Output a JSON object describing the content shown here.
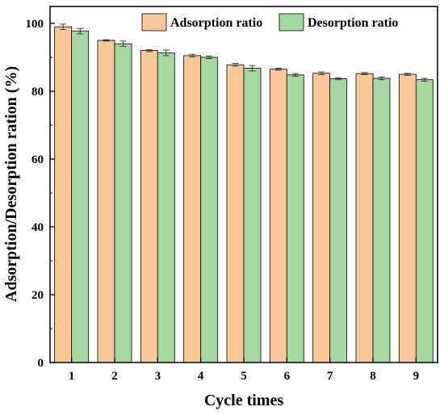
{
  "chart_data": {
    "type": "bar",
    "title": "",
    "xlabel": "Cycle times",
    "ylabel": "Adsorption/Desorption ration (%)",
    "categories": [
      "1",
      "2",
      "3",
      "4",
      "5",
      "6",
      "7",
      "8",
      "9"
    ],
    "ylim": [
      0,
      105
    ],
    "yticks": [
      0,
      20,
      40,
      60,
      80,
      100
    ],
    "grid": false,
    "legend_position": "top-right",
    "series": [
      {
        "name": "Adsorption ratio",
        "color": "#FAC898",
        "values": [
          99.0,
          95.0,
          92.0,
          90.5,
          87.8,
          86.5,
          85.3,
          85.2,
          85.0
        ],
        "errors": [
          0.8,
          0.2,
          0.3,
          0.4,
          0.4,
          0.3,
          0.4,
          0.3,
          0.3
        ]
      },
      {
        "name": "Desorption ratio",
        "color": "#A5D8A0",
        "values": [
          97.7,
          94.0,
          91.3,
          90.0,
          86.8,
          84.8,
          83.7,
          83.8,
          83.4
        ],
        "errors": [
          0.8,
          0.8,
          0.8,
          0.4,
          0.8,
          0.4,
          0.3,
          0.4,
          0.4
        ]
      }
    ]
  }
}
